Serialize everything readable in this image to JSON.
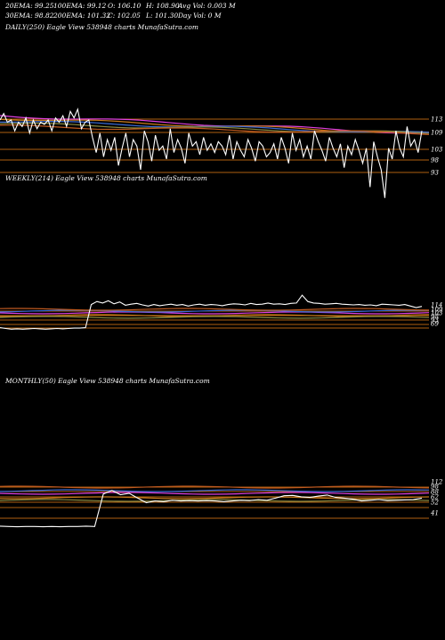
{
  "header": {
    "ema20": "20EMA: 99.25",
    "ema100": "100EMA: 99.12",
    "open": "O: 106.10",
    "high": "H: 108.90",
    "avg_vol": "Avg Vol: 0.003 M",
    "ema30": "30EMA: 98.82",
    "ema200": "200EMA: 101.32",
    "close": "C: 102.05",
    "low": "L: 101.30",
    "day_vol": "Day Vol: 0  M"
  },
  "colors": {
    "background": "#000000",
    "price_line": "#ffffff",
    "ema_blue": "#3a6bd6",
    "ema_magenta": "#e040e0",
    "ema_orange": "#c87a1a",
    "support_line": "#b06010"
  },
  "chart_data": [
    {
      "type": "line",
      "title": "DAILY(250) Eagle  View  538948 charts MunafaSutra.com",
      "y_ticks": [
        "113",
        "109",
        "103",
        "98",
        "93"
      ],
      "series": [
        {
          "values": [
            113,
            116,
            112,
            113,
            108,
            112,
            110,
            114,
            107,
            113,
            109,
            112,
            111,
            113,
            108,
            114,
            112,
            115,
            110,
            117,
            114,
            118,
            109,
            112,
            113,
            105,
            98,
            107,
            96,
            104,
            99,
            105,
            92,
            100,
            107,
            96,
            104,
            101,
            90,
            108,
            103,
            94,
            106,
            99,
            101,
            95,
            109,
            98,
            104,
            100,
            93,
            107,
            101,
            103,
            97,
            105,
            99,
            102,
            98,
            103,
            101,
            97,
            106,
            95,
            103,
            99,
            96,
            104,
            100,
            94,
            103,
            101,
            96,
            98,
            102,
            95,
            105,
            100,
            93,
            107,
            99,
            104,
            96,
            101,
            95,
            108,
            103,
            99,
            94,
            105,
            100,
            96,
            102,
            91,
            101,
            97,
            104,
            99,
            93,
            100,
            82,
            103,
            96,
            90,
            77,
            100,
            95,
            108,
            100,
            96,
            110,
            101,
            104,
            98,
            108
          ]
        }
      ]
    },
    {
      "type": "line",
      "title": "WEEKLY(214) Eagle  View  538948 charts MunafaSutra.com",
      "y_ticks": [
        "114",
        "109",
        "103",
        "98",
        "93",
        "69"
      ],
      "series": [
        {
          "values": [
            38,
            36,
            34,
            35,
            34,
            35,
            36,
            35,
            34,
            35,
            36,
            35,
            36,
            37,
            37,
            38,
            100,
            108,
            104,
            110,
            102,
            107,
            98,
            101,
            103,
            99,
            96,
            100,
            97,
            99,
            101,
            98,
            100,
            96,
            99,
            101,
            98,
            100,
            99,
            97,
            100,
            102,
            101,
            99,
            103,
            100,
            101,
            104,
            101,
            102,
            100,
            103,
            104,
            125,
            108,
            104,
            103,
            101,
            102,
            103,
            101,
            100,
            99,
            100,
            98,
            99,
            97,
            101,
            100,
            99,
            98,
            100,
            96,
            92,
            95
          ]
        }
      ]
    },
    {
      "type": "line",
      "title": "MONTHLY(50) Eagle  View  538948 charts MunafaSutra.com",
      "y_ticks": [
        "112",
        "98",
        "88",
        "62",
        "52",
        "41"
      ],
      "series": [
        {
          "values": [
            -12,
            -13,
            -14,
            -13,
            -13,
            -14,
            -13,
            -14,
            -13,
            -13,
            -12,
            -13,
            80,
            90,
            78,
            82,
            68,
            55,
            60,
            58,
            62,
            60,
            61,
            60,
            61,
            60,
            58,
            60,
            62,
            61,
            64,
            62,
            68,
            75,
            76,
            72,
            70,
            74,
            77,
            70,
            68,
            65,
            60,
            62,
            64,
            61,
            62,
            63,
            64,
            68
          ]
        }
      ]
    }
  ]
}
